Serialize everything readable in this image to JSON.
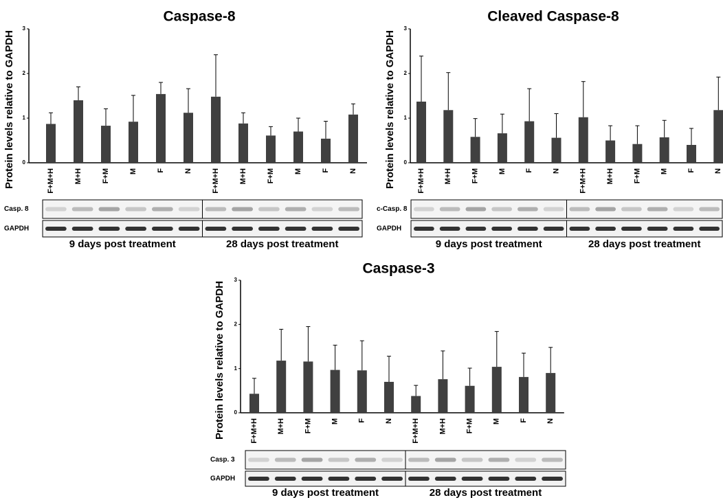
{
  "chart_data": [
    {
      "type": "bar",
      "title": "Caspase-8",
      "ylabel": "Protein levels relative to GAPDH",
      "categories": [
        "F+M+H",
        "M+H",
        "F+M",
        "M",
        "F",
        "N",
        "F+M+H",
        "M+H",
        "F+M",
        "M",
        "F",
        "N"
      ],
      "values": [
        0.87,
        1.4,
        0.83,
        0.92,
        1.54,
        1.12,
        1.48,
        0.88,
        0.61,
        0.7,
        0.54,
        1.08
      ],
      "errors": [
        0.25,
        0.3,
        0.38,
        0.59,
        0.26,
        0.54,
        0.94,
        0.24,
        0.2,
        0.3,
        0.39,
        0.24
      ],
      "color": "#404040",
      "ylim": [
        0,
        3
      ],
      "yticks": [
        0,
        1,
        2,
        3
      ],
      "blots": [
        "Casp. 8",
        "GAPDH"
      ],
      "groups": [
        "9 days post treatment",
        "28 days post treatment"
      ]
    },
    {
      "type": "bar",
      "title": "Cleaved Caspase-8",
      "ylabel": "Protein levels relative to GAPDH",
      "categories": [
        "F+M+H",
        "M+H",
        "F+M",
        "M",
        "F",
        "N",
        "F+M+H",
        "M+H",
        "F+M",
        "M",
        "F",
        "N"
      ],
      "values": [
        1.37,
        1.18,
        0.58,
        0.66,
        0.93,
        0.56,
        1.02,
        0.5,
        0.42,
        0.57,
        0.4,
        1.18
      ],
      "errors": [
        1.02,
        0.84,
        0.41,
        0.43,
        0.73,
        0.54,
        0.8,
        0.33,
        0.41,
        0.38,
        0.37,
        0.74
      ],
      "color": "#404040",
      "ylim": [
        0,
        3
      ],
      "yticks": [
        0,
        1,
        2,
        3
      ],
      "blots": [
        "c-Casp. 8",
        "GAPDH"
      ],
      "groups": [
        "9 days post treatment",
        "28 days post treatment"
      ]
    },
    {
      "type": "bar",
      "title": "Caspase-3",
      "ylabel": "Protein levels relative to GAPDH",
      "categories": [
        "F+M+H",
        "M+H",
        "F+M",
        "M",
        "F",
        "N",
        "F+M+H",
        "M+H",
        "F+M",
        "M",
        "F",
        "N"
      ],
      "values": [
        0.43,
        1.18,
        1.16,
        0.97,
        0.96,
        0.7,
        0.38,
        0.76,
        0.61,
        1.04,
        0.81,
        0.9
      ],
      "errors": [
        0.35,
        0.71,
        0.79,
        0.56,
        0.67,
        0.58,
        0.24,
        0.64,
        0.4,
        0.8,
        0.54,
        0.58
      ],
      "color": "#404040",
      "ylim": [
        0,
        3
      ],
      "yticks": [
        0,
        1,
        2,
        3
      ],
      "blots": [
        "Casp. 3",
        "GAPDH"
      ],
      "groups": [
        "9 days post treatment",
        "28 days post treatment"
      ]
    }
  ]
}
